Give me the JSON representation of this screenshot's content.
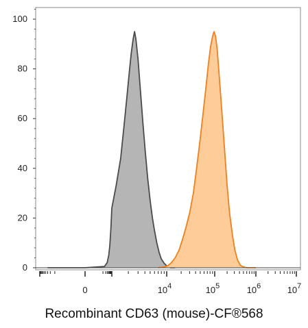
{
  "chart_data": {
    "type": "area",
    "title": "",
    "xlabel": "Recombinant CD63 (mouse)-CF®568",
    "ylabel": "",
    "x_scale": "biexponential",
    "xlim": [
      -1000,
      10000000
    ],
    "ylim": [
      0,
      105
    ],
    "y_ticks": [
      0,
      20,
      40,
      60,
      80,
      100
    ],
    "x_tick_labels": [
      {
        "base": "0",
        "exp": "",
        "value": 0
      },
      {
        "base": "10",
        "exp": "4",
        "value": 10000
      },
      {
        "base": "10",
        "exp": "5",
        "value": 100000
      },
      {
        "base": "10",
        "exp": "6",
        "value": 1000000
      },
      {
        "base": "10",
        "exp": "7",
        "value": 10000000
      }
    ],
    "grid": false,
    "series": [
      {
        "color_fill": "#b5b5b5",
        "color_line": "#4a4a4a",
        "points": [
          [
            -300,
            0
          ],
          [
            0,
            0
          ],
          [
            150,
            0.5
          ],
          [
            300,
            2
          ],
          [
            450,
            5
          ],
          [
            600,
            9
          ],
          [
            800,
            16
          ],
          [
            1000,
            24
          ],
          [
            1200,
            33
          ],
          [
            1450,
            44
          ],
          [
            1650,
            56
          ],
          [
            1850,
            67
          ],
          [
            2050,
            77
          ],
          [
            2250,
            86
          ],
          [
            2450,
            92
          ],
          [
            2600,
            95
          ],
          [
            2750,
            92
          ],
          [
            3000,
            84
          ],
          [
            3300,
            72
          ],
          [
            3700,
            58
          ],
          [
            4100,
            46
          ],
          [
            4500,
            36
          ],
          [
            5000,
            27
          ],
          [
            5500,
            20
          ],
          [
            6000,
            15
          ],
          [
            6600,
            10
          ],
          [
            7300,
            6
          ],
          [
            8000,
            3.5
          ],
          [
            9000,
            1.8
          ],
          [
            10000,
            0.8
          ],
          [
            11000,
            0.3
          ],
          [
            12000,
            0
          ],
          [
            15000,
            0
          ]
        ]
      },
      {
        "color_fill": "#fdcc99",
        "color_line": "#f07f1e",
        "points": [
          [
            7000,
            0
          ],
          [
            9000,
            0.3
          ],
          [
            10500,
            0.8
          ],
          [
            12500,
            2
          ],
          [
            15000,
            4
          ],
          [
            18000,
            7
          ],
          [
            21000,
            11
          ],
          [
            25000,
            16
          ],
          [
            30000,
            22
          ],
          [
            36000,
            30
          ],
          [
            42000,
            40
          ],
          [
            50000,
            52
          ],
          [
            58000,
            63
          ],
          [
            66000,
            73
          ],
          [
            74000,
            82
          ],
          [
            82000,
            89
          ],
          [
            90000,
            93
          ],
          [
            97000,
            95
          ],
          [
            105000,
            93
          ],
          [
            115000,
            88
          ],
          [
            125000,
            80
          ],
          [
            140000,
            69
          ],
          [
            160000,
            56
          ],
          [
            180000,
            44
          ],
          [
            200000,
            33
          ],
          [
            230000,
            22
          ],
          [
            270000,
            13
          ],
          [
            310000,
            7
          ],
          [
            360000,
            3
          ],
          [
            420000,
            1
          ],
          [
            500000,
            0.3
          ],
          [
            600000,
            0
          ],
          [
            1000000,
            0
          ]
        ]
      }
    ]
  }
}
